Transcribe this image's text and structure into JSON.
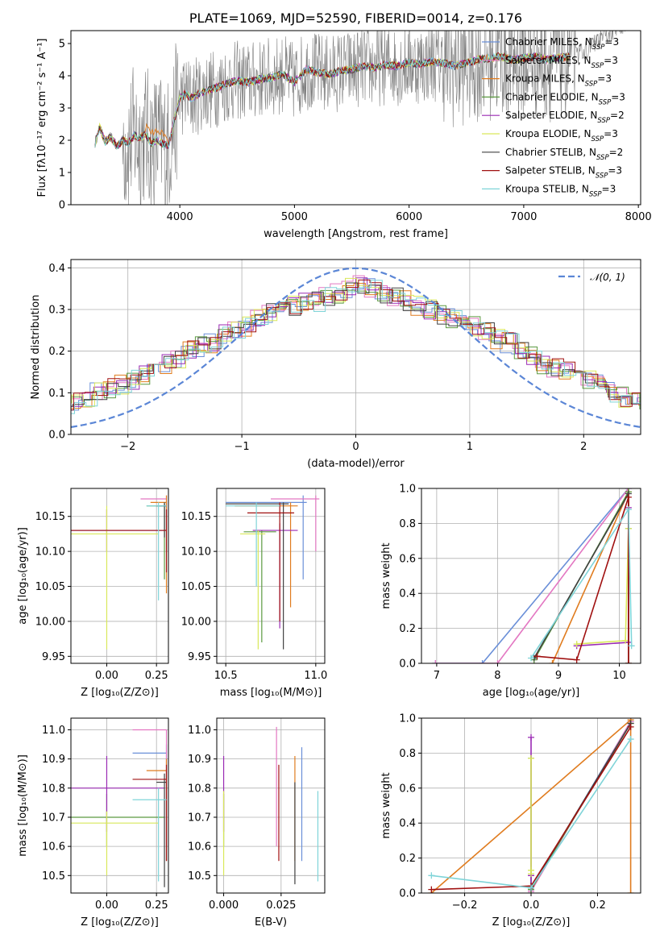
{
  "colors": {
    "Chabrier MILES": "#6a8fd8",
    "Salpeter MILES": "#e377c2",
    "Kroupa MILES": "#e07c1f",
    "Chabrier ELODIE": "#5c9a41",
    "Salpeter ELODIE": "#9a2ab4",
    "Kroupa ELODIE": "#d9e85a",
    "Chabrier STELIB": "#404040",
    "Salpeter STELIB": "#a01010",
    "Kroupa STELIB": "#7fd4d8",
    "spectrum": "#808080",
    "gaussian": "#5b86d6"
  },
  "chart_data": [
    {
      "id": "spectrum",
      "type": "line",
      "title": "PLATE=1069, MJD=52590, FIBERID=0014, z=0.176",
      "xlabel": "wavelength [Angstrom, rest frame]",
      "ylabel": "Flux [fλ10⁻¹⁷ erg cm⁻² s⁻¹ A⁻¹]",
      "xlim": [
        3050,
        8020
      ],
      "ylim": [
        0,
        5.4
      ],
      "xticks": [
        4000,
        5000,
        6000,
        7000,
        8000
      ],
      "yticks": [
        0,
        1,
        2,
        3,
        4,
        5
      ],
      "grid": false,
      "legend": [
        {
          "model": "Chabrier MILES",
          "label": "Chabrier MILES, N",
          "nssp": "3"
        },
        {
          "model": "Salpeter MILES",
          "label": "Salpeter MILES, N",
          "nssp": "3"
        },
        {
          "model": "Kroupa MILES",
          "label": "Kroupa MILES, N",
          "nssp": "3"
        },
        {
          "model": "Chabrier ELODIE",
          "label": "Chabrier ELODIE, N",
          "nssp": "3"
        },
        {
          "model": "Salpeter ELODIE",
          "label": "Salpeter ELODIE, N",
          "nssp": "2"
        },
        {
          "model": "Kroupa ELODIE",
          "label": "Kroupa ELODIE, N",
          "nssp": "3"
        },
        {
          "model": "Chabrier STELIB",
          "label": "Chabrier STELIB, N",
          "nssp": "2"
        },
        {
          "model": "Salpeter STELIB",
          "label": "Salpeter STELIB, N",
          "nssp": "3"
        },
        {
          "model": "Kroupa STELIB",
          "label": "Kroupa STELIB, N",
          "nssp": "3"
        }
      ],
      "legend_subscript": "SSP",
      "legend_loc": "upper right",
      "model_curve_x": [
        3260,
        3300,
        3350,
        3400,
        3450,
        3500,
        3550,
        3600,
        3650,
        3700,
        3750,
        3800,
        3850,
        3900,
        3950,
        4000,
        4050,
        4100,
        4200,
        4300,
        4400,
        4500,
        4600,
        4700,
        4800,
        4900,
        5000,
        5100,
        5200,
        5300,
        5400,
        5500,
        5600,
        5700,
        5800,
        5900,
        6000,
        6100,
        6200,
        6300,
        6400,
        6500,
        6600,
        6700,
        6800,
        6900,
        7000,
        7100,
        7200,
        7300,
        7400
      ],
      "model_curve_y": [
        1.9,
        2.4,
        1.95,
        2.1,
        1.8,
        2.0,
        1.9,
        2.15,
        2.05,
        2.2,
        1.9,
        2.0,
        1.9,
        1.8,
        2.6,
        3.3,
        3.45,
        3.3,
        3.5,
        3.6,
        3.75,
        3.85,
        3.8,
        3.9,
        3.95,
        4.05,
        3.8,
        4.2,
        4.1,
        4.05,
        4.15,
        4.2,
        4.3,
        4.25,
        4.35,
        4.3,
        4.4,
        4.35,
        4.45,
        4.4,
        4.3,
        4.4,
        4.5,
        4.55,
        4.6,
        4.5,
        4.55,
        4.6,
        4.5,
        4.55,
        4.6
      ]
    },
    {
      "id": "residuals",
      "type": "line",
      "xlabel": "(data-model)/error",
      "ylabel": "Normed distribution",
      "xlim": [
        -2.5,
        2.5
      ],
      "ylim": [
        0,
        0.42
      ],
      "xticks": [
        -2,
        -1,
        0,
        1,
        2
      ],
      "yticks": [
        0.0,
        0.1,
        0.2,
        0.3,
        0.4
      ],
      "grid": true,
      "legend": [
        {
          "label": "𝒩(0, 1)"
        }
      ],
      "legend_loc": "upper right",
      "gaussian": {
        "mu": 0,
        "sigma": 1
      },
      "hist_bin_width": 0.1,
      "hist_mean": [
        0.03,
        0.04,
        0.05,
        0.06,
        0.07,
        0.08,
        0.09,
        0.1,
        0.11,
        0.12,
        0.13,
        0.14,
        0.15,
        0.17,
        0.18,
        0.2,
        0.21,
        0.22,
        0.24,
        0.25,
        0.26,
        0.28,
        0.29,
        0.3,
        0.31,
        0.32,
        0.32,
        0.33,
        0.34,
        0.35,
        0.36,
        0.35,
        0.34,
        0.33,
        0.32,
        0.31,
        0.3,
        0.29,
        0.28,
        0.27,
        0.26,
        0.25,
        0.23,
        0.22,
        0.2,
        0.19,
        0.17,
        0.16,
        0.15,
        0.14,
        0.13,
        0.12,
        0.1,
        0.09,
        0.08,
        0.07,
        0.06,
        0.05,
        0.05,
        0.04
      ]
    },
    {
      "id": "age-vs-Z",
      "type": "scatter",
      "xlabel": "Z [log₁₀(Z/Z⊙)]",
      "ylabel": "age  [log₁₀(age/yr)]",
      "xlim": [
        -0.18,
        0.31
      ],
      "ylim": [
        9.94,
        10.19
      ],
      "xticks": [
        0.0,
        0.25
      ],
      "xticklabels": [
        "0.00",
        "0.25"
      ],
      "yticks": [
        9.95,
        10.0,
        10.05,
        10.1,
        10.15
      ],
      "yticklabels": [
        "9.95",
        "10.00",
        "10.05",
        "10.10",
        "10.15"
      ],
      "grid": true,
      "points": [
        {
          "model": "Chabrier MILES",
          "x": 0.3,
          "y": 10.13,
          "xlo": -0.18,
          "xhi": 0.3,
          "ylo": 10.1,
          "yhi": 10.17
        },
        {
          "model": "Salpeter MILES",
          "x": 0.3,
          "y": 10.175,
          "xlo": 0.17,
          "xhi": 0.3,
          "ylo": 10.13,
          "yhi": 10.18
        },
        {
          "model": "Kroupa MILES",
          "x": 0.3,
          "y": 10.17,
          "xlo": 0.22,
          "xhi": 0.3,
          "ylo": 10.04,
          "yhi": 10.18
        },
        {
          "model": "Chabrier ELODIE",
          "x": 0.29,
          "y": 10.165,
          "xlo": 0.2,
          "xhi": 0.3,
          "ylo": 10.06,
          "yhi": 10.17
        },
        {
          "model": "Salpeter ELODIE",
          "x": 0.0,
          "y": 10.13,
          "xlo": -0.18,
          "xhi": 0.29,
          "ylo": 10.1,
          "yhi": 10.16
        },
        {
          "model": "Kroupa ELODIE",
          "x": 0.0,
          "y": 10.125,
          "xlo": -0.18,
          "xhi": 0.26,
          "ylo": 9.96,
          "yhi": 10.165
        },
        {
          "model": "Chabrier STELIB",
          "x": 0.29,
          "y": 10.165,
          "xlo": 0.25,
          "xhi": 0.3,
          "ylo": 10.12,
          "yhi": 10.17
        },
        {
          "model": "Salpeter STELIB",
          "x": 0.3,
          "y": 10.13,
          "xlo": -0.18,
          "xhi": 0.3,
          "ylo": 10.07,
          "yhi": 10.16
        },
        {
          "model": "Kroupa STELIB",
          "x": 0.26,
          "y": 10.165,
          "xlo": 0.2,
          "xhi": 0.3,
          "ylo": 10.03,
          "yhi": 10.17
        }
      ]
    },
    {
      "id": "age-vs-mass",
      "type": "scatter",
      "xlabel": "mass [log₁₀(M/M⊙)]",
      "ylabel": "",
      "xlim": [
        10.45,
        11.05
      ],
      "ylim": [
        9.94,
        10.19
      ],
      "xticks": [
        10.5,
        11.0
      ],
      "xticklabels": [
        "10.5",
        "11.0"
      ],
      "yticks": [
        9.95,
        10.0,
        10.05,
        10.1,
        10.15
      ],
      "yticklabels": [
        "9.95",
        "10.00",
        "10.05",
        "10.10",
        "10.15"
      ],
      "grid": true,
      "points": [
        {
          "model": "Chabrier MILES",
          "x": 10.93,
          "y": 10.17,
          "xlo": 10.5,
          "xhi": 10.95,
          "ylo": 10.06,
          "yhi": 10.18
        },
        {
          "model": "Salpeter MILES",
          "x": 11.0,
          "y": 10.175,
          "xlo": 10.75,
          "xhi": 11.02,
          "ylo": 10.1,
          "yhi": 10.18
        },
        {
          "model": "Kroupa MILES",
          "x": 10.86,
          "y": 10.165,
          "xlo": 10.55,
          "xhi": 10.9,
          "ylo": 10.02,
          "yhi": 10.17
        },
        {
          "model": "Chabrier ELODIE",
          "x": 10.7,
          "y": 10.128,
          "xlo": 10.6,
          "xhi": 10.78,
          "ylo": 9.97,
          "yhi": 10.13
        },
        {
          "model": "Salpeter ELODIE",
          "x": 10.8,
          "y": 10.13,
          "xlo": 10.65,
          "xhi": 10.9,
          "ylo": 9.99,
          "yhi": 10.14
        },
        {
          "model": "Kroupa ELODIE",
          "x": 10.68,
          "y": 10.125,
          "xlo": 10.58,
          "xhi": 10.72,
          "ylo": 9.96,
          "yhi": 10.13
        },
        {
          "model": "Chabrier STELIB",
          "x": 10.82,
          "y": 10.168,
          "xlo": 10.5,
          "xhi": 10.85,
          "ylo": 9.96,
          "yhi": 10.17
        },
        {
          "model": "Salpeter STELIB",
          "x": 10.8,
          "y": 10.155,
          "xlo": 10.62,
          "xhi": 10.88,
          "ylo": 10.0,
          "yhi": 10.17
        },
        {
          "model": "Kroupa STELIB",
          "x": 10.67,
          "y": 10.165,
          "xlo": 10.5,
          "xhi": 10.8,
          "ylo": 10.05,
          "yhi": 10.17
        }
      ]
    },
    {
      "id": "weight-vs-age",
      "type": "line",
      "xlabel": "age  [log₁₀(age/yr)]",
      "ylabel": "mass weight",
      "xlim": [
        6.75,
        10.35
      ],
      "ylim": [
        0,
        1.0
      ],
      "xticks": [
        7,
        8,
        9,
        10
      ],
      "yticks": [
        0.0,
        0.2,
        0.4,
        0.6,
        0.8,
        1.0
      ],
      "yticklabels": [
        "0.0",
        "0.2",
        "0.4",
        "0.6",
        "0.8",
        "1.0"
      ],
      "grid": true,
      "series": [
        {
          "model": "Chabrier MILES",
          "x": [
            6.98,
            7.75,
            10.15
          ],
          "y": [
            0.0,
            0.0,
            1.0
          ]
        },
        {
          "model": "Salpeter MILES",
          "x": [
            6.98,
            8.0,
            10.15
          ],
          "y": [
            0.0,
            0.0,
            1.0
          ]
        },
        {
          "model": "Kroupa MILES",
          "x": [
            8.9,
            10.15,
            10.15
          ],
          "y": [
            0.0,
            0.98,
            0.0
          ]
        },
        {
          "model": "Chabrier ELODIE",
          "x": [
            8.6,
            10.15,
            10.15
          ],
          "y": [
            0.02,
            0.98,
            0.77
          ]
        },
        {
          "model": "Salpeter ELODIE",
          "x": [
            9.3,
            10.15,
            10.15
          ],
          "y": [
            0.1,
            0.12,
            0.89
          ]
        },
        {
          "model": "Kroupa ELODIE",
          "x": [
            9.3,
            10.1,
            10.15
          ],
          "y": [
            0.11,
            0.13,
            0.77
          ]
        },
        {
          "model": "Chabrier STELIB",
          "x": [
            8.6,
            10.15,
            10.15
          ],
          "y": [
            0.03,
            0.97,
            0.0
          ]
        },
        {
          "model": "Salpeter STELIB",
          "x": [
            8.65,
            9.3,
            10.15,
            10.15
          ],
          "y": [
            0.04,
            0.02,
            0.95,
            0.0
          ]
        },
        {
          "model": "Kroupa STELIB",
          "x": [
            8.55,
            10.15,
            10.2
          ],
          "y": [
            0.03,
            0.88,
            0.1
          ]
        }
      ]
    },
    {
      "id": "mass-vs-Z",
      "type": "scatter",
      "xlabel": "Z [log₁₀(Z/Z⊙)]",
      "ylabel": "mass [log₁₀(M/M⊙)]",
      "xlim": [
        -0.18,
        0.31
      ],
      "ylim": [
        10.44,
        11.04
      ],
      "xticks": [
        0.0,
        0.25
      ],
      "xticklabels": [
        "0.00",
        "0.25"
      ],
      "yticks": [
        10.5,
        10.6,
        10.7,
        10.8,
        10.9,
        11.0
      ],
      "yticklabels": [
        "10.5",
        "10.6",
        "10.7",
        "10.8",
        "10.9",
        "11.0"
      ],
      "grid": true,
      "points": [
        {
          "model": "Chabrier MILES",
          "x": 0.3,
          "y": 10.92,
          "xlo": 0.13,
          "xhi": 0.3,
          "ylo": 10.55,
          "yhi": 10.95
        },
        {
          "model": "Salpeter MILES",
          "x": 0.3,
          "y": 11.0,
          "xlo": 0.13,
          "xhi": 0.3,
          "ylo": 10.6,
          "yhi": 11.0
        },
        {
          "model": "Kroupa MILES",
          "x": 0.3,
          "y": 10.86,
          "xlo": 0.2,
          "xhi": 0.3,
          "ylo": 10.55,
          "yhi": 10.9
        },
        {
          "model": "Chabrier ELODIE",
          "x": 0.0,
          "y": 10.7,
          "xlo": -0.18,
          "xhi": 0.29,
          "ylo": 10.6,
          "yhi": 10.78
        },
        {
          "model": "Salpeter ELODIE",
          "x": 0.0,
          "y": 10.8,
          "xlo": -0.18,
          "xhi": 0.29,
          "ylo": 10.65,
          "yhi": 10.91
        },
        {
          "model": "Kroupa ELODIE",
          "x": 0.0,
          "y": 10.68,
          "xlo": -0.18,
          "xhi": 0.26,
          "ylo": 10.5,
          "yhi": 10.72
        },
        {
          "model": "Chabrier STELIB",
          "x": 0.29,
          "y": 10.82,
          "xlo": 0.25,
          "xhi": 0.3,
          "ylo": 10.46,
          "yhi": 10.85
        },
        {
          "model": "Salpeter STELIB",
          "x": 0.3,
          "y": 10.83,
          "xlo": 0.13,
          "xhi": 0.3,
          "ylo": 10.55,
          "yhi": 10.88
        },
        {
          "model": "Kroupa STELIB",
          "x": 0.26,
          "y": 10.76,
          "xlo": 0.13,
          "xhi": 0.3,
          "ylo": 10.48,
          "yhi": 10.8
        }
      ]
    },
    {
      "id": "mass-vs-ebv",
      "type": "scatter",
      "xlabel": "E(B-V)",
      "ylabel": "",
      "xlim": [
        -0.003,
        0.044
      ],
      "ylim": [
        10.44,
        11.04
      ],
      "xticks": [
        0.0,
        0.025
      ],
      "xticklabels": [
        "0.000",
        "0.025"
      ],
      "yticks": [
        10.5,
        10.6,
        10.7,
        10.8,
        10.9,
        11.0
      ],
      "yticklabels": [
        "10.5",
        "10.6",
        "10.7",
        "10.8",
        "10.9",
        "11.0"
      ],
      "grid": true,
      "points": [
        {
          "model": "Chabrier MILES",
          "x": 0.034,
          "y": 10.75,
          "xlo": 0.034,
          "xhi": 0.034,
          "ylo": 10.55,
          "yhi": 10.94
        },
        {
          "model": "Salpeter MILES",
          "x": 0.023,
          "y": 10.8,
          "xlo": 0.023,
          "xhi": 0.023,
          "ylo": 10.6,
          "yhi": 11.01
        },
        {
          "model": "Kroupa MILES",
          "x": 0.031,
          "y": 10.75,
          "xlo": 0.031,
          "xhi": 0.031,
          "ylo": 10.55,
          "yhi": 10.91
        },
        {
          "model": "Chabrier ELODIE",
          "x": 0.0,
          "y": 10.7,
          "xlo": 0.0,
          "xhi": 0.0,
          "ylo": 10.6,
          "yhi": 10.78
        },
        {
          "model": "Salpeter ELODIE",
          "x": 0.0,
          "y": 10.8,
          "xlo": 0.0,
          "xhi": 0.0,
          "ylo": 10.65,
          "yhi": 10.91
        },
        {
          "model": "Kroupa ELODIE",
          "x": 0.0,
          "y": 10.68,
          "xlo": 0.0,
          "xhi": 0.0,
          "ylo": 10.5,
          "yhi": 10.79
        },
        {
          "model": "Chabrier STELIB",
          "x": 0.031,
          "y": 10.6,
          "xlo": 0.031,
          "xhi": 0.031,
          "ylo": 10.47,
          "yhi": 10.82
        },
        {
          "model": "Salpeter STELIB",
          "x": 0.024,
          "y": 10.8,
          "xlo": 0.024,
          "xhi": 0.024,
          "ylo": 10.55,
          "yhi": 10.88
        },
        {
          "model": "Kroupa STELIB",
          "x": 0.041,
          "y": 10.65,
          "xlo": 0.041,
          "xhi": 0.041,
          "ylo": 10.48,
          "yhi": 10.79
        }
      ]
    },
    {
      "id": "weight-vs-Z",
      "type": "line",
      "xlabel": "Z [log₁₀(Z/Z⊙)]",
      "ylabel": "mass weight",
      "xlim": [
        -0.33,
        0.33
      ],
      "ylim": [
        0,
        1.0
      ],
      "xticks": [
        -0.2,
        0.0,
        0.2
      ],
      "xticklabels": [
        "−0.2",
        "0.0",
        "0.2"
      ],
      "yticks": [
        0.0,
        0.2,
        0.4,
        0.6,
        0.8,
        1.0
      ],
      "yticklabels": [
        "0.0",
        "0.2",
        "0.4",
        "0.6",
        "0.8",
        "1.0"
      ],
      "grid": true,
      "series": [
        {
          "model": "Chabrier MILES",
          "x": [
            0.0,
            0.0,
            0.3
          ],
          "y": [
            0.0,
            0.02,
            0.98
          ]
        },
        {
          "model": "Salpeter MILES",
          "x": [
            0.0,
            0.0,
            0.3
          ],
          "y": [
            0.0,
            0.01,
            0.98
          ]
        },
        {
          "model": "Kroupa MILES",
          "x": [
            -0.3,
            0.3,
            0.3
          ],
          "y": [
            0.0,
            0.99,
            0.0
          ]
        },
        {
          "model": "Chabrier ELODIE",
          "x": [
            0.0,
            0.0,
            0.3
          ],
          "y": [
            0.77,
            0.02,
            0.97
          ]
        },
        {
          "model": "Salpeter ELODIE",
          "x": [
            0.0,
            0.0,
            0.0
          ],
          "y": [
            0.89,
            0.1,
            0.03
          ]
        },
        {
          "model": "Kroupa ELODIE",
          "x": [
            0.0,
            0.0,
            0.0
          ],
          "y": [
            0.77,
            0.11,
            0.13
          ]
        },
        {
          "model": "Chabrier STELIB",
          "x": [
            0.0,
            0.0,
            0.3
          ],
          "y": [
            0.03,
            0.03,
            0.97
          ]
        },
        {
          "model": "Salpeter STELIB",
          "x": [
            -0.3,
            0.0,
            0.3
          ],
          "y": [
            0.02,
            0.04,
            0.95
          ]
        },
        {
          "model": "Kroupa STELIB",
          "x": [
            -0.3,
            0.0,
            0.3
          ],
          "y": [
            0.1,
            0.03,
            0.88
          ]
        }
      ]
    }
  ]
}
